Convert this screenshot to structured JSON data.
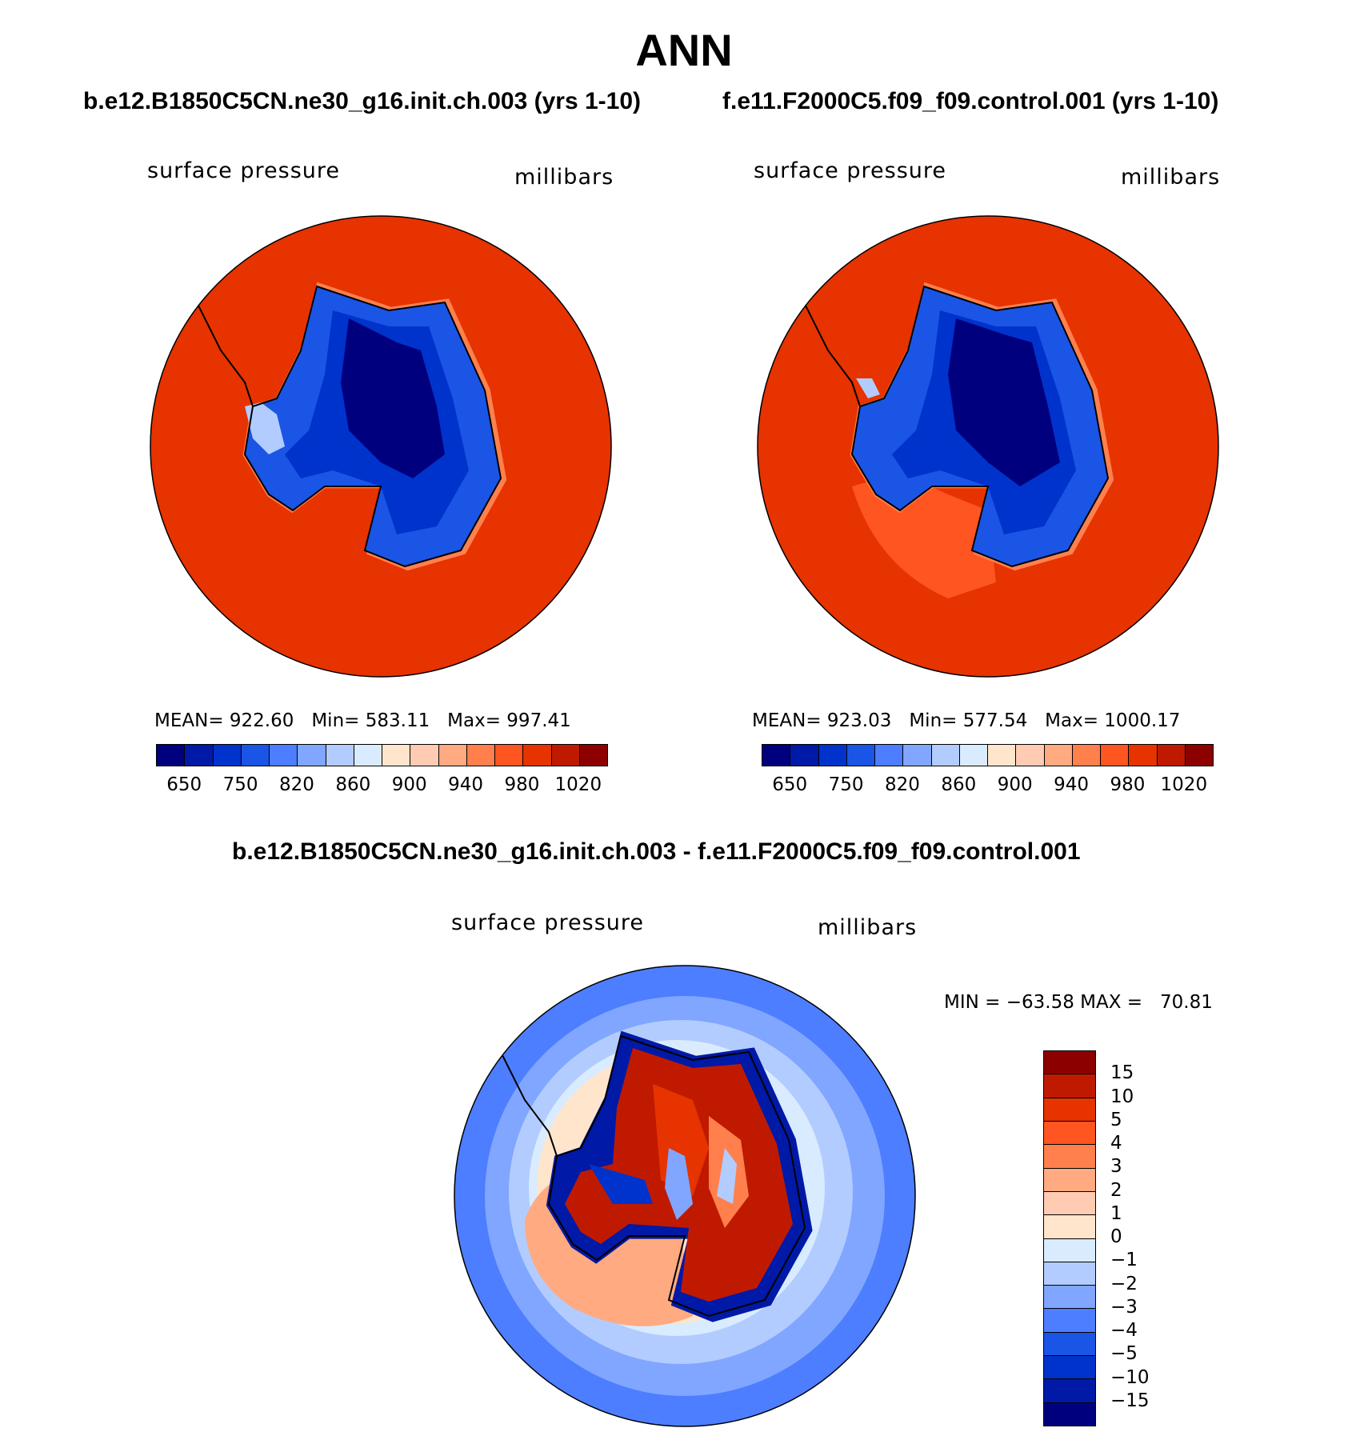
{
  "title": "ANN",
  "panels": [
    {
      "case": "b.e12.B1850C5CN.ne30_g16.init.ch.003 (yrs 1-10)",
      "variable": "surface pressure",
      "units": "millibars",
      "mean_label": "MEAN=",
      "mean": "922.60",
      "min_label": "Min=",
      "min": "583.11",
      "max_label": "Max=",
      "max": "997.41"
    },
    {
      "case": "f.e11.F2000C5.f09_f09.control.001 (yrs 1-10)",
      "variable": "surface pressure",
      "units": "millibars",
      "mean_label": "MEAN=",
      "mean": "923.03",
      "min_label": "Min=",
      "min": "577.54",
      "max_label": "Max=",
      "max": "1000.17"
    }
  ],
  "diff": {
    "case": "b.e12.B1850C5CN.ne30_g16.init.ch.003 - f.e11.F2000C5.f09_f09.control.001",
    "variable": "surface pressure",
    "units": "millibars",
    "stats": "MIN = −63.58 MAX =   70.81"
  },
  "colorbar_abs": {
    "colors": [
      "#00007f",
      "#0019a6",
      "#0033cc",
      "#1a55e6",
      "#4d7eff",
      "#80a6ff",
      "#b3ccff",
      "#d9ebff",
      "#ffe5cc",
      "#ffccb3",
      "#ffaa80",
      "#ff804d",
      "#ff5520",
      "#e63300",
      "#bf1a00",
      "#8c0000"
    ],
    "ticks": [
      "650",
      "750",
      "820",
      "860",
      "900",
      "940",
      "980",
      "1020"
    ]
  },
  "colorbar_diff": {
    "colors": [
      "#8c0000",
      "#bf1a00",
      "#e63300",
      "#ff5520",
      "#ff804d",
      "#ffaa80",
      "#ffccb3",
      "#ffe5cc",
      "#d9ebff",
      "#b3ccff",
      "#80a6ff",
      "#4d7eff",
      "#1a55e6",
      "#0033cc",
      "#0019a6",
      "#00007f"
    ],
    "ticks": [
      "15",
      "10",
      "5",
      "4",
      "3",
      "2",
      "1",
      "0",
      "−1",
      "−2",
      "−3",
      "−4",
      "−5",
      "−10",
      "−15"
    ]
  }
}
